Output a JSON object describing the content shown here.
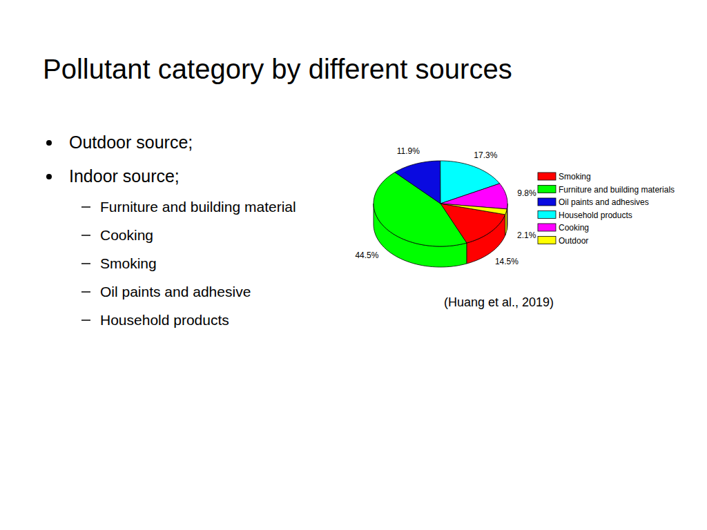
{
  "slide": {
    "title": "Pollutant category by different sources",
    "bullets": [
      {
        "text": "Outdoor source;",
        "sub": []
      },
      {
        "text": "Indoor source;",
        "sub": [
          "Furniture and building material",
          "Cooking",
          "Smoking",
          "Oil paints and adhesive",
          "Household products"
        ]
      }
    ],
    "source": "(Huang et al., 2019)"
  },
  "chart_data": {
    "type": "pie",
    "categories": [
      "Smoking",
      "Furniture and building materials",
      "Oil paints and adhesives",
      "Household products",
      "Cooking",
      "Outdoor"
    ],
    "values": [
      14.5,
      44.5,
      11.9,
      17.3,
      9.8,
      2.1
    ],
    "value_labels": [
      "14.5%",
      "44.5%",
      "11.9%",
      "17.3%",
      "9.8%",
      "2.1%"
    ],
    "colors": [
      "#ff0000",
      "#00ff00",
      "#0a0ae0",
      "#00ffff",
      "#ff00ff",
      "#ffff00"
    ],
    "data_labels": true,
    "legend": "right"
  }
}
